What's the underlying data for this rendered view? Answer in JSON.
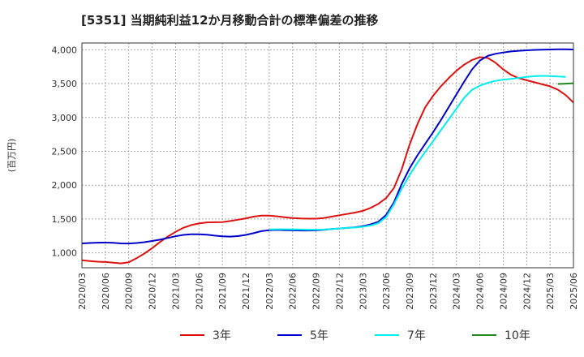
{
  "chart_data": {
    "type": "line",
    "title": "[5351]  当期純利益12か月移動合計の標準偏差の推移",
    "xlabel": "",
    "ylabel": "(百万円)",
    "ylim": [
      780,
      4100
    ],
    "yticks": [
      1000,
      1500,
      2000,
      2500,
      3000,
      3500,
      4000
    ],
    "ytick_labels": [
      "1,000",
      "1,500",
      "2,000",
      "2,500",
      "3,000",
      "3,500",
      "4,000"
    ],
    "xlim": [
      0,
      63
    ],
    "xticks": [
      0,
      3,
      6,
      9,
      12,
      15,
      18,
      21,
      24,
      27,
      30,
      33,
      36,
      39,
      42,
      45,
      48,
      51,
      54,
      57,
      60,
      63
    ],
    "xtick_labels": [
      "2020/03",
      "2020/06",
      "2020/09",
      "2020/12",
      "2021/03",
      "2021/06",
      "2021/09",
      "2021/12",
      "2022/03",
      "2022/06",
      "2022/09",
      "2022/12",
      "2023/03",
      "2023/06",
      "2023/09",
      "2023/12",
      "2024/03",
      "2024/06",
      "2024/09",
      "2024/12",
      "2025/03",
      "2025/06"
    ],
    "grid": true,
    "legend_position": "bottom",
    "series": [
      {
        "name": "3年",
        "color": "#dd1111",
        "start_index": 0,
        "values": [
          890,
          880,
          870,
          865,
          855,
          845,
          860,
          920,
          990,
          1070,
          1160,
          1240,
          1310,
          1370,
          1410,
          1435,
          1450,
          1452,
          1455,
          1470,
          1490,
          1510,
          1535,
          1550,
          1550,
          1540,
          1525,
          1515,
          1508,
          1505,
          1505,
          1515,
          1535,
          1555,
          1575,
          1595,
          1620,
          1665,
          1725,
          1810,
          1960,
          2240,
          2600,
          2900,
          3150,
          3320,
          3460,
          3580,
          3690,
          3780,
          3850,
          3890,
          3880,
          3810,
          3710,
          3630,
          3580,
          3550,
          3520,
          3490,
          3460,
          3410,
          3330,
          3220
        ]
      },
      {
        "name": "5年",
        "color": "#0000cc",
        "start_index": 0,
        "values": [
          1140,
          1145,
          1150,
          1152,
          1148,
          1140,
          1138,
          1145,
          1158,
          1175,
          1195,
          1220,
          1245,
          1265,
          1275,
          1275,
          1268,
          1255,
          1245,
          1240,
          1248,
          1265,
          1290,
          1320,
          1335,
          1338,
          1335,
          1332,
          1330,
          1330,
          1332,
          1340,
          1352,
          1360,
          1368,
          1378,
          1395,
          1420,
          1460,
          1560,
          1750,
          2020,
          2250,
          2440,
          2610,
          2780,
          2960,
          3150,
          3340,
          3530,
          3710,
          3840,
          3910,
          3940,
          3960,
          3975,
          3985,
          3992,
          3998,
          4002,
          4004,
          4006,
          4006,
          4004
        ]
      },
      {
        "name": "7年",
        "color": "#00eeee",
        "start_index": 24,
        "values": [
          1345,
          1348,
          1348,
          1347,
          1345,
          1342,
          1342,
          1345,
          1352,
          1360,
          1368,
          1375,
          1385,
          1405,
          1440,
          1530,
          1720,
          1950,
          2150,
          2330,
          2490,
          2650,
          2810,
          2970,
          3130,
          3290,
          3410,
          3470,
          3510,
          3540,
          3560,
          3570,
          3585,
          3600,
          3610,
          3615,
          3612,
          3605,
          3600
        ]
      },
      {
        "name": "10年",
        "color": "#228822",
        "start_index": 61,
        "values": [
          3495,
          3500,
          3505
        ]
      }
    ]
  }
}
